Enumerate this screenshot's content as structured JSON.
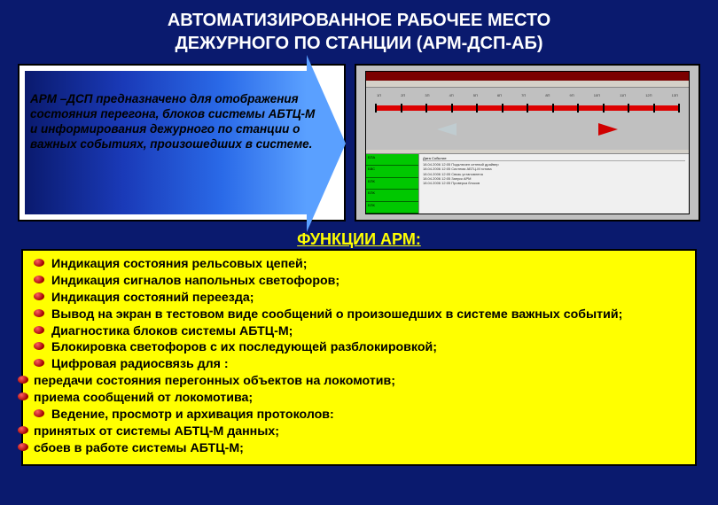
{
  "title_line1": "АВТОМАТИЗИРОВАННОЕ РАБОЧЕЕ МЕСТО",
  "title_line2": "ДЕЖУРНОГО ПО СТАНЦИИ (АРМ-ДСП-АБ)",
  "description": "АРМ –ДСП предназначено для отображения состояния перегона, блоков системы АБТЦ-М и информирования дежурного по станции о важных событиях, произошедших в системе.",
  "functions_title": "ФУНКЦИИ  АРМ:",
  "functions": [
    "Индикация состояния рельсовых цепей;",
    "Индикация сигналов напольных светофоров;",
    "Индикация состояний переезда;",
    "Вывод на экран в тестовом виде сообщений о произошедших в системе важных событий;",
    "Диагностика блоков системы АБТЦ-М;",
    "Блокировка светофоров с их последующей разблокировкой;",
    "Цифровая радиосвязь для :"
  ],
  "functions_sub1": [
    "передачи состояния перегонных объектов на локомотив;",
    "приема сообщений от локомотива;"
  ],
  "functions2": [
    "Ведение, просмотр и архивация протоколов:"
  ],
  "functions_sub2": [
    "принятых от системы АБТЦ-М данных;",
    "сбоев в работе системы АБТЦ-М;"
  ],
  "screenshot": {
    "track_color": "#d00000",
    "bg_color": "#c0c0c0",
    "titlebar_color": "#7b0000",
    "status_cells": [
      "БПА",
      "БВС",
      "БПК",
      "БПК",
      "БПК"
    ],
    "log_header": "Дата        Событие",
    "log_lines": [
      "18.04.2006 12:05    Подключен сетевой драйвер",
      "18.04.2006 12:05    Система АБТЦ-М готова",
      "18.04.2006 12:05    Связь установлена",
      "18.04.2006 12:05    Запуск АРМ",
      "18.04.2006 12:05    Проверка блоков"
    ],
    "track_labels": [
      "1П",
      "2П",
      "3П",
      "4П",
      "5П",
      "6П",
      "7П",
      "8П",
      "9П",
      "10П",
      "11П",
      "12П",
      "13П"
    ]
  },
  "colors": {
    "slide_bg": "#0a1a6e",
    "highlight_bg": "#ffff00",
    "title_color": "#ffffff",
    "func_title_color": "#ffff00"
  }
}
